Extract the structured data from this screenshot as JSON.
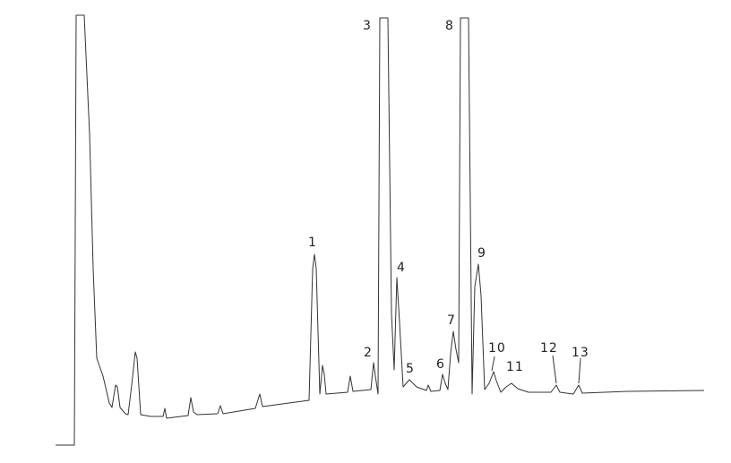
{
  "chart_data": {
    "type": "line",
    "title": "",
    "xlabel": "",
    "ylabel": "",
    "grid": false,
    "legend": "none",
    "line_color": "#333333",
    "peak_labels": [
      "1",
      "2",
      "3",
      "4",
      "5",
      "6",
      "7",
      "8",
      "9",
      "10",
      "11",
      "12",
      "13"
    ]
  }
}
